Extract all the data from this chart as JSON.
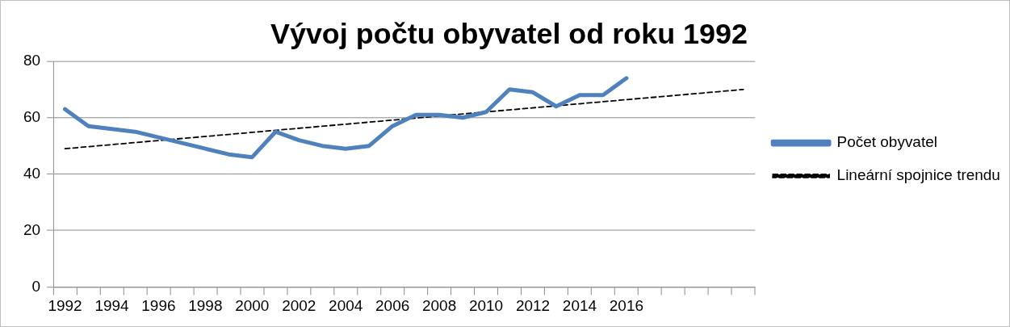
{
  "chart_data": {
    "type": "line",
    "title": "Vývoj počtu obyvatel od roku 1992",
    "categories": [
      "1992",
      null,
      "1994",
      null,
      "1996",
      null,
      "1998",
      null,
      "2000",
      null,
      "2002",
      null,
      "2004",
      null,
      "2006",
      null,
      "2008",
      null,
      "2010",
      null,
      "2012",
      null,
      "2014",
      null,
      "2016",
      null,
      null,
      null,
      null,
      null
    ],
    "series": [
      {
        "name": "Počet obyvatel",
        "color": "#4f81bd",
        "values": [
          63,
          57,
          56,
          55,
          53,
          51,
          49,
          47,
          46,
          55,
          52,
          50,
          49,
          50,
          57,
          61,
          61,
          60,
          62,
          70,
          69,
          64,
          68,
          68,
          74,
          null,
          null,
          null,
          null,
          null
        ]
      },
      {
        "name": "Lineární spojnice trendu",
        "color": "#000000",
        "line_style": "dashed",
        "values": [
          49,
          null,
          null,
          null,
          null,
          null,
          null,
          null,
          null,
          null,
          null,
          null,
          null,
          null,
          null,
          null,
          null,
          null,
          null,
          null,
          null,
          null,
          null,
          null,
          null,
          null,
          null,
          null,
          null,
          70
        ]
      }
    ],
    "ylim": [
      0,
      80
    ],
    "yticks": [
      0,
      20,
      40,
      60,
      80
    ],
    "grid": "y",
    "legend": "right",
    "marker": "none"
  }
}
